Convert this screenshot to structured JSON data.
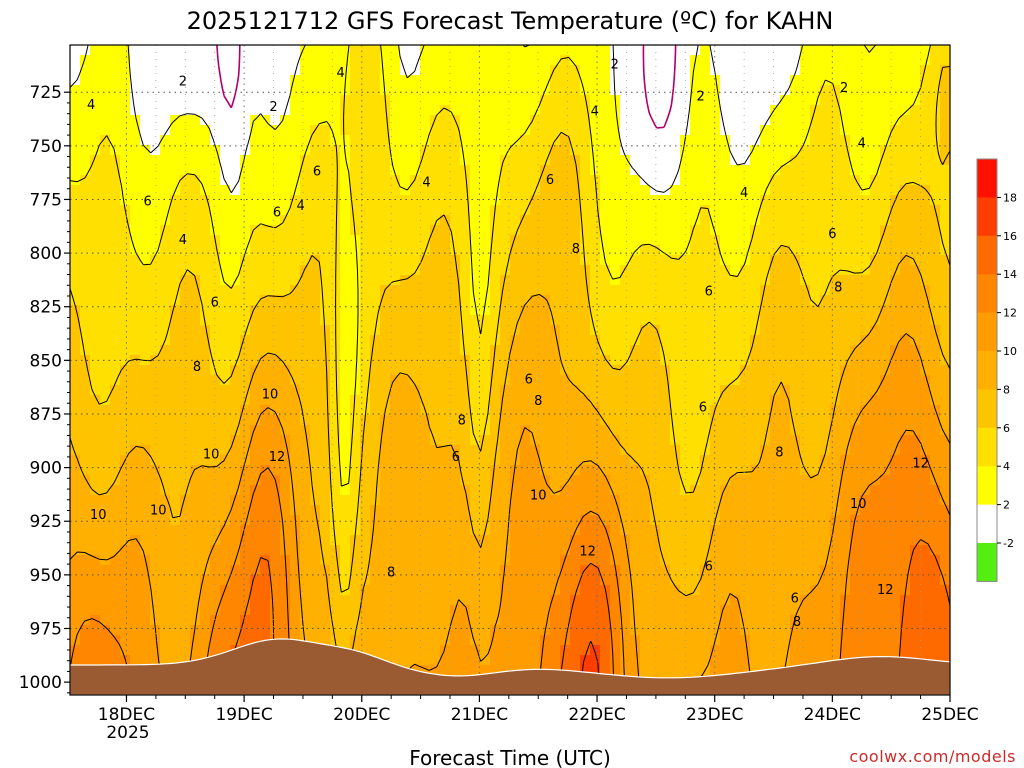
{
  "chart_data": {
    "type": "heatmap",
    "title": "2025121712 GFS Forecast Temperature (ºC) for KAHN",
    "xlabel": "Forecast Time (UTC)",
    "ylabel": "",
    "x_ticks": [
      "18DEC",
      "19DEC",
      "20DEC",
      "21DEC",
      "22DEC",
      "23DEC",
      "24DEC",
      "25DEC"
    ],
    "x_year_label": "2025",
    "y_ticks": [
      725,
      750,
      775,
      800,
      825,
      850,
      875,
      900,
      925,
      950,
      975,
      1000
    ],
    "y_unit": "hPa",
    "ylim": [
      1006,
      703
    ],
    "grid": true,
    "colorbar": {
      "ticks": [
        18,
        16,
        14,
        12,
        10,
        8,
        6,
        4,
        2,
        -2
      ],
      "bins": [
        {
          "from": 18,
          "to": 20,
          "color": "#ff1100"
        },
        {
          "from": 16,
          "to": 18,
          "color": "#ff3d00"
        },
        {
          "from": 14,
          "to": 16,
          "color": "#ff6a00"
        },
        {
          "from": 12,
          "to": 14,
          "color": "#ff8600"
        },
        {
          "from": 10,
          "to": 12,
          "color": "#ff9d00"
        },
        {
          "from": 8,
          "to": 10,
          "color": "#ffb000"
        },
        {
          "from": 6,
          "to": 8,
          "color": "#ffc400"
        },
        {
          "from": 4,
          "to": 6,
          "color": "#ffe000"
        },
        {
          "from": 2,
          "to": 4,
          "color": "#ffff00"
        },
        {
          "from": -2,
          "to": 2,
          "color": "#ffffff"
        },
        {
          "from": -4,
          "to": -2,
          "color": "#55ee11"
        }
      ]
    },
    "ground_color": "#9a5a32",
    "contour_labels": [
      {
        "text": "2",
        "day": 0.48,
        "p": 720
      },
      {
        "text": "2",
        "day": 1.25,
        "p": 732
      },
      {
        "text": "2",
        "day": 4.15,
        "p": 712
      },
      {
        "text": "2",
        "day": 4.88,
        "p": 727
      },
      {
        "text": "2",
        "day": 6.1,
        "p": 723
      },
      {
        "text": "4",
        "day": -0.3,
        "p": 731
      },
      {
        "text": "4",
        "day": 1.82,
        "p": 716
      },
      {
        "text": "4",
        "day": 0.48,
        "p": 794
      },
      {
        "text": "4",
        "day": 1.48,
        "p": 778
      },
      {
        "text": "4",
        "day": 2.55,
        "p": 767
      },
      {
        "text": "4",
        "day": 3.98,
        "p": 734
      },
      {
        "text": "4",
        "day": 5.25,
        "p": 772
      },
      {
        "text": "4",
        "day": 6.25,
        "p": 749
      },
      {
        "text": "6",
        "day": 0.18,
        "p": 776
      },
      {
        "text": "6",
        "day": 1.28,
        "p": 781
      },
      {
        "text": "6",
        "day": 1.62,
        "p": 762
      },
      {
        "text": "6",
        "day": 0.75,
        "p": 823
      },
      {
        "text": "6",
        "day": 3.6,
        "p": 766
      },
      {
        "text": "6",
        "day": 3.42,
        "p": 859
      },
      {
        "text": "6",
        "day": 2.8,
        "p": 895
      },
      {
        "text": "6",
        "day": 4.95,
        "p": 818
      },
      {
        "text": "6",
        "day": 4.9,
        "p": 872
      },
      {
        "text": "6",
        "day": 4.95,
        "p": 946
      },
      {
        "text": "6",
        "day": 5.68,
        "p": 961
      },
      {
        "text": "6",
        "day": 6.0,
        "p": 791
      },
      {
        "text": "8",
        "day": 0.6,
        "p": 853
      },
      {
        "text": "8",
        "day": 3.82,
        "p": 798
      },
      {
        "text": "8",
        "day": 3.5,
        "p": 869
      },
      {
        "text": "8",
        "day": 2.85,
        "p": 878
      },
      {
        "text": "8",
        "day": 2.25,
        "p": 949
      },
      {
        "text": "8",
        "day": 5.55,
        "p": 893
      },
      {
        "text": "8",
        "day": 5.7,
        "p": 972
      },
      {
        "text": "8",
        "day": 6.05,
        "p": 816
      },
      {
        "text": "10",
        "day": -0.24,
        "p": 922
      },
      {
        "text": "10",
        "day": 0.27,
        "p": 920
      },
      {
        "text": "10",
        "day": 0.72,
        "p": 894
      },
      {
        "text": "10",
        "day": 1.22,
        "p": 866
      },
      {
        "text": "10",
        "day": 3.5,
        "p": 913
      },
      {
        "text": "10",
        "day": 6.22,
        "p": 917
      },
      {
        "text": "12",
        "day": 1.28,
        "p": 895
      },
      {
        "text": "12",
        "day": 3.92,
        "p": 939
      },
      {
        "text": "12",
        "day": 6.75,
        "p": 898
      },
      {
        "text": "12",
        "day": 6.45,
        "p": 957
      }
    ],
    "credit": "coolwx.com/models"
  }
}
